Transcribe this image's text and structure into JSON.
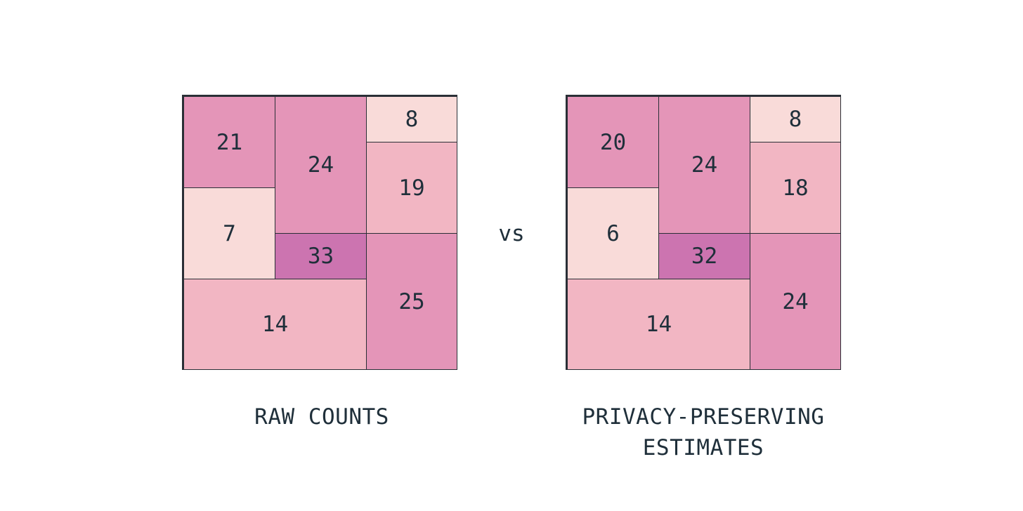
{
  "left_grid": {
    "cells": {
      "a": "21",
      "b": "24",
      "c": "8",
      "d": "19",
      "e": "7",
      "f": "33",
      "g": "25",
      "h": "14"
    },
    "caption": "RAW COUNTS"
  },
  "right_grid": {
    "cells": {
      "a": "20",
      "b": "24",
      "c": "8",
      "d": "18",
      "e": "6",
      "f": "32",
      "g": "24",
      "h": "14"
    },
    "caption_line1": "PRIVACY-PRESERVING",
    "caption_line2": "ESTIMATES"
  },
  "separator": "vs",
  "colors": {
    "lightest": "#f9dbd9",
    "light": "#f2b6c3",
    "medium": "#e495b8",
    "dark": "#cc74b0",
    "border": "#2a2f36",
    "text": "#1f2f3a"
  }
}
